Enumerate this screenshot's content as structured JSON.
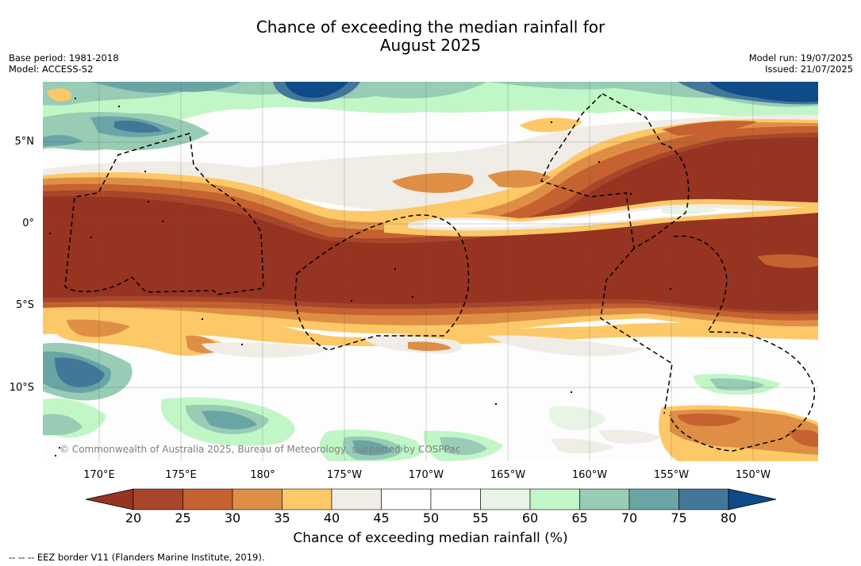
{
  "title_line1": "Chance of exceeding the median rainfall for",
  "title_line2": "August 2025",
  "meta_left": [
    "Base period: 1981-2018",
    "Model: ACCESS-S2"
  ],
  "meta_right": [
    "Model run: 19/07/2025",
    "Issued: 21/07/2025"
  ],
  "lat_labels": [
    "5°N",
    "0°",
    "5°S",
    "10°S"
  ],
  "lon_labels": [
    "170°E",
    "175°E",
    "180°",
    "175°W",
    "170°W",
    "165°W",
    "160°W",
    "155°W",
    "150°W"
  ],
  "copyright": "© Commonwealth of Australia 2025, Bureau of Meteorology, supported by COSPPac",
  "colorbar": {
    "ticks": [
      "20",
      "25",
      "30",
      "35",
      "40",
      "45",
      "50",
      "55",
      "60",
      "65",
      "70",
      "75",
      "80"
    ],
    "colors": [
      "#a8462b",
      "#c5622f",
      "#de8f45",
      "#fdc867",
      "#f0ece6",
      "#ffffff",
      "#ffffff",
      "#e8f4e4",
      "#c1f6c7",
      "#98ccb5",
      "#6aa5a6",
      "#43779a"
    ],
    "under_color": "#963321",
    "over_color": "#0e4b87",
    "label": "Chance of exceeding median rainfall (%)"
  },
  "footnote": "--  --  -- EEZ border V11 (Flanders Marine Institute, 2019)."
}
